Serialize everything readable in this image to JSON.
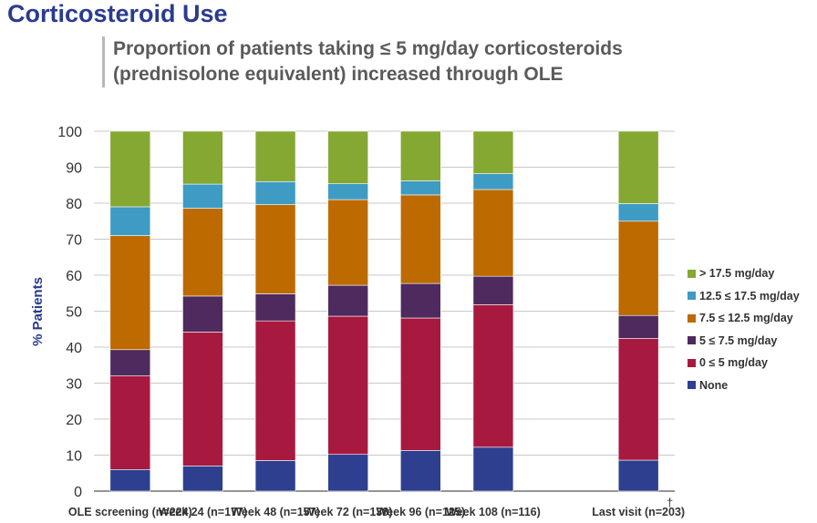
{
  "header": {
    "title": "Corticosteroid Use",
    "subtitle_line1": "Proportion of patients taking ≤ 5 mg/day corticosteroids",
    "subtitle_line2": "(prednisolone equivalent) increased through OLE"
  },
  "chart_data": {
    "type": "bar",
    "stacked": true,
    "ylabel": "% Patients",
    "xlabel": "",
    "ylim": [
      0,
      100
    ],
    "yticks": [
      0,
      10,
      20,
      30,
      40,
      50,
      60,
      70,
      80,
      90,
      100
    ],
    "grid": true,
    "legend_position": "right",
    "footnote_mark": "†",
    "categories": [
      "OLE screening (n=224)",
      "Week 24 (n=177)",
      "Week 48 (n=157)",
      "Week 72 (n=138)",
      "Week 96 (n=125)",
      "Week 108 (n=116)",
      "",
      "Last visit (n=203)"
    ],
    "series": [
      {
        "name": "None",
        "color": "#2e3f8f",
        "values": [
          6,
          7,
          8.5,
          10.2,
          11.3,
          12.2,
          null,
          8.6
        ]
      },
      {
        "name": "0 ≤ 5 mg/day",
        "color": "#a8193f",
        "values": [
          26,
          37.2,
          38.8,
          38.4,
          36.8,
          39.6,
          null,
          33.8
        ]
      },
      {
        "name": "5 ≤ 7.5 mg/day",
        "color": "#4e2a5e",
        "values": [
          7.3,
          10,
          7.5,
          8.6,
          9.6,
          7.9,
          null,
          6.4
        ]
      },
      {
        "name": "7.5 ≤ 12.5 mg/day",
        "color": "#bd6a00",
        "values": [
          31.7,
          24.4,
          24.8,
          23.8,
          24.6,
          24.1,
          null,
          26.2
        ]
      },
      {
        "name": "12.5 ≤ 17.5 mg/day",
        "color": "#3e9bc4",
        "values": [
          8,
          6.7,
          6.4,
          4.4,
          3.9,
          4.4,
          null,
          4.9
        ]
      },
      {
        "name": "> 17.5 mg/day",
        "color": "#84a832",
        "values": [
          21,
          14.7,
          14,
          14.6,
          13.8,
          11.8,
          null,
          20.1
        ]
      }
    ]
  }
}
